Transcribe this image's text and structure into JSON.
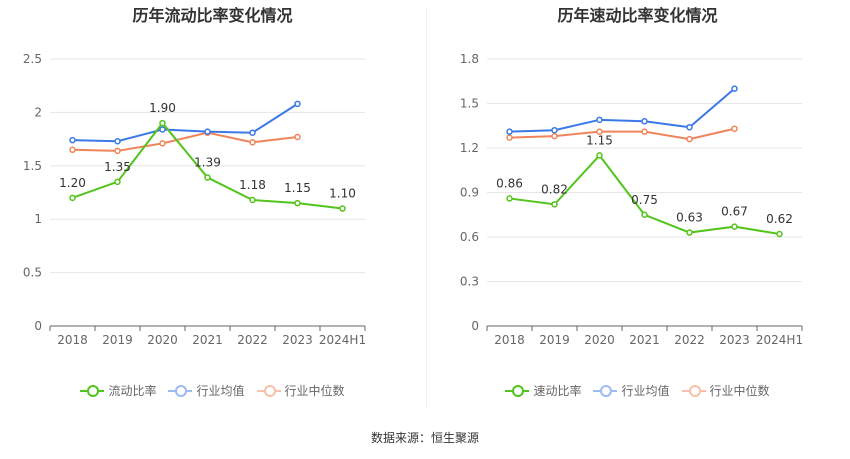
{
  "chart_data": [
    {
      "type": "line",
      "title": "历年流动比率变化情况",
      "categories": [
        "2018",
        "2019",
        "2020",
        "2021",
        "2022",
        "2023",
        "2024H1"
      ],
      "ylim": [
        0,
        2.5
      ],
      "yticks": [
        "0",
        "0.5",
        "1",
        "1.5",
        "2",
        "2.5"
      ],
      "grid": true,
      "legend_position": "bottom",
      "series": [
        {
          "name": "流动比率",
          "color": "#52c41a",
          "values": [
            1.2,
            1.35,
            1.9,
            1.39,
            1.18,
            1.15,
            1.1
          ],
          "labels": [
            "1.20",
            "1.35",
            "1.90",
            "1.39",
            "1.18",
            "1.15",
            "1.10"
          ]
        },
        {
          "name": "行业均值",
          "color": "#3b78e7",
          "values": [
            1.74,
            1.73,
            1.84,
            1.82,
            1.81,
            2.08,
            null
          ]
        },
        {
          "name": "行业中位数",
          "color": "#f0845a",
          "values": [
            1.65,
            1.64,
            1.71,
            1.81,
            1.72,
            1.77,
            null
          ]
        }
      ]
    },
    {
      "type": "line",
      "title": "历年速动比率变化情况",
      "categories": [
        "2018",
        "2019",
        "2020",
        "2021",
        "2022",
        "2023",
        "2024H1"
      ],
      "ylim": [
        0,
        1.8
      ],
      "yticks": [
        "0",
        "0.3",
        "0.6",
        "0.9",
        "1.2",
        "1.5",
        "1.8"
      ],
      "grid": true,
      "legend_position": "bottom",
      "series": [
        {
          "name": "速动比率",
          "color": "#52c41a",
          "values": [
            0.86,
            0.82,
            1.15,
            0.75,
            0.63,
            0.67,
            0.62
          ],
          "labels": [
            "0.86",
            "0.82",
            "1.15",
            "0.75",
            "0.63",
            "0.67",
            "0.62"
          ]
        },
        {
          "name": "行业均值",
          "color": "#3b78e7",
          "values": [
            1.31,
            1.32,
            1.39,
            1.38,
            1.34,
            1.6,
            null
          ]
        },
        {
          "name": "行业中位数",
          "color": "#f0845a",
          "values": [
            1.27,
            1.28,
            1.31,
            1.31,
            1.26,
            1.33,
            null
          ]
        }
      ]
    }
  ],
  "footer": "数据来源：恒生聚源"
}
